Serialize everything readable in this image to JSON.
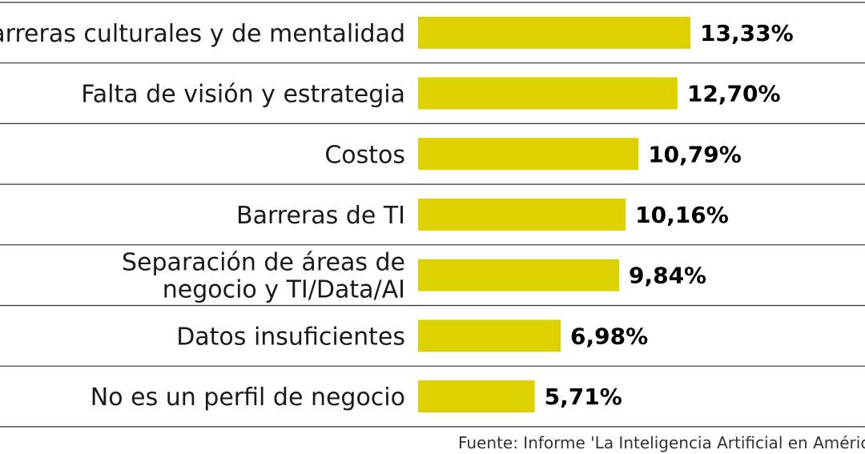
{
  "chart_data": {
    "type": "bar",
    "orientation": "horizontal",
    "categories": [
      [
        "Barreras culturales y de mentalidad"
      ],
      [
        "Falta de visión y estrategia"
      ],
      [
        "Costos"
      ],
      [
        "Barreras de TI"
      ],
      [
        "Separación de áreas de",
        "negocio y TI/Data/AI"
      ],
      [
        "Datos insuficientes"
      ],
      [
        "No es un perfil de negocio"
      ]
    ],
    "values": [
      13.33,
      12.7,
      10.79,
      10.16,
      9.84,
      6.98,
      5.71
    ],
    "value_labels": [
      "13,33%",
      "12,70%",
      "10,79%",
      "10,16%",
      "9,84%",
      "6,98%",
      "5,71%"
    ],
    "xlim": [
      0,
      13.33
    ],
    "bar_color": "#ddd200",
    "separator_color": "#333333",
    "title": "",
    "xlabel": "",
    "ylabel": "",
    "legend": "none",
    "grid": false
  },
  "source": "Fuente: Informe 'La Inteligencia Artificial en América"
}
